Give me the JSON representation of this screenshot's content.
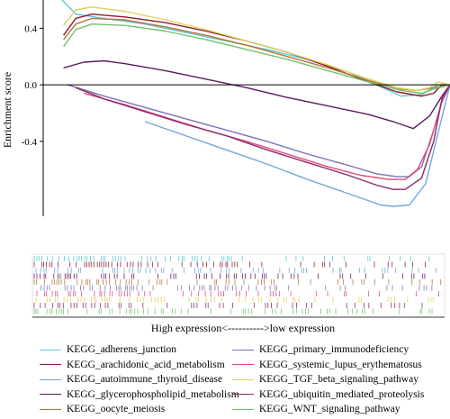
{
  "chart_data": {
    "type": "line",
    "title": "",
    "ylabel": "Enrichment score",
    "xlabel": "High expression<---------->low expression",
    "xlim": [
      0,
      100
    ],
    "ylim": [
      -0.93,
      0.6
    ],
    "yticks": [
      {
        "value": 0.4,
        "label": "0.4"
      },
      {
        "value": 0.0,
        "label": "0.0"
      },
      {
        "value": -0.4,
        "label": "-0.4"
      }
    ],
    "series": [
      {
        "name": "KEGG_adherens_junction",
        "color": "#5bc8d8",
        "points": [
          [
            4,
            0.62
          ],
          [
            8,
            0.5
          ],
          [
            15,
            0.47
          ],
          [
            25,
            0.43
          ],
          [
            35,
            0.37
          ],
          [
            45,
            0.31
          ],
          [
            55,
            0.25
          ],
          [
            65,
            0.18
          ],
          [
            75,
            0.09
          ],
          [
            82,
            0.0
          ],
          [
            88,
            -0.08
          ],
          [
            93,
            -0.07
          ],
          [
            97,
            0.0
          ],
          [
            100,
            0.0
          ]
        ]
      },
      {
        "name": "KEGG_arachidonic_acid_metabolism",
        "color": "#8b1a2e",
        "points": [
          [
            5,
            0.35
          ],
          [
            8,
            0.47
          ],
          [
            12,
            0.5
          ],
          [
            20,
            0.48
          ],
          [
            30,
            0.44
          ],
          [
            40,
            0.38
          ],
          [
            50,
            0.31
          ],
          [
            60,
            0.23
          ],
          [
            70,
            0.13
          ],
          [
            80,
            0.02
          ],
          [
            87,
            -0.05
          ],
          [
            93,
            -0.08
          ],
          [
            96,
            -0.06
          ],
          [
            98,
            0.0
          ],
          [
            100,
            0.0
          ]
        ]
      },
      {
        "name": "KEGG_autoimmune_thyroid_disease",
        "color": "#6fa8dc",
        "points": [
          [
            25,
            -0.26
          ],
          [
            35,
            -0.36
          ],
          [
            45,
            -0.46
          ],
          [
            55,
            -0.56
          ],
          [
            65,
            -0.67
          ],
          [
            75,
            -0.77
          ],
          [
            83,
            -0.85
          ],
          [
            86,
            -0.86
          ],
          [
            90,
            -0.85
          ],
          [
            94,
            -0.7
          ],
          [
            97,
            -0.35
          ],
          [
            100,
            0.0
          ]
        ]
      },
      {
        "name": "KEGG_glycerophospholipid_metabolism",
        "color": "#5a1a5e",
        "points": [
          [
            5,
            0.12
          ],
          [
            10,
            0.16
          ],
          [
            15,
            0.17
          ],
          [
            20,
            0.15
          ],
          [
            30,
            0.1
          ],
          [
            40,
            0.04
          ],
          [
            50,
            -0.02
          ],
          [
            60,
            -0.09
          ],
          [
            70,
            -0.15
          ],
          [
            80,
            -0.21
          ],
          [
            86,
            -0.26
          ],
          [
            89,
            -0.29
          ],
          [
            91,
            -0.31
          ],
          [
            95,
            -0.22
          ],
          [
            98,
            -0.08
          ],
          [
            100,
            0.0
          ]
        ]
      },
      {
        "name": "KEGG_oocyte_meiosis",
        "color": "#b5733a",
        "points": [
          [
            5,
            0.32
          ],
          [
            8,
            0.43
          ],
          [
            12,
            0.47
          ],
          [
            20,
            0.46
          ],
          [
            30,
            0.41
          ],
          [
            40,
            0.35
          ],
          [
            50,
            0.28
          ],
          [
            60,
            0.2
          ],
          [
            70,
            0.12
          ],
          [
            80,
            0.03
          ],
          [
            88,
            -0.03
          ],
          [
            92,
            -0.04
          ],
          [
            96,
            -0.02
          ],
          [
            100,
            0.0
          ]
        ]
      },
      {
        "name": "KEGG_primary_immunodeficiency",
        "color": "#7a72b8",
        "points": [
          [
            6,
            0.0
          ],
          [
            15,
            -0.08
          ],
          [
            25,
            -0.16
          ],
          [
            35,
            -0.24
          ],
          [
            45,
            -0.32
          ],
          [
            55,
            -0.4
          ],
          [
            65,
            -0.49
          ],
          [
            75,
            -0.57
          ],
          [
            82,
            -0.63
          ],
          [
            87,
            -0.65
          ],
          [
            90,
            -0.65
          ],
          [
            93,
            -0.58
          ],
          [
            96,
            -0.32
          ],
          [
            98,
            -0.12
          ],
          [
            100,
            0.0
          ]
        ]
      },
      {
        "name": "KEGG_systemic_lupus_erythematosus",
        "color": "#e8467c",
        "points": [
          [
            10,
            -0.06
          ],
          [
            20,
            -0.14
          ],
          [
            30,
            -0.23
          ],
          [
            40,
            -0.32
          ],
          [
            50,
            -0.4
          ],
          [
            60,
            -0.49
          ],
          [
            70,
            -0.58
          ],
          [
            78,
            -0.64
          ],
          [
            85,
            -0.67
          ],
          [
            89,
            -0.67
          ],
          [
            92,
            -0.6
          ],
          [
            95,
            -0.42
          ],
          [
            98,
            -0.12
          ],
          [
            100,
            0.0
          ]
        ]
      },
      {
        "name": "KEGG_TGF_beta_signaling_pathway",
        "color": "#e0cf5a",
        "points": [
          [
            5,
            0.42
          ],
          [
            8,
            0.53
          ],
          [
            12,
            0.55
          ],
          [
            20,
            0.52
          ],
          [
            30,
            0.46
          ],
          [
            40,
            0.39
          ],
          [
            50,
            0.31
          ],
          [
            60,
            0.23
          ],
          [
            70,
            0.14
          ],
          [
            80,
            0.04
          ],
          [
            87,
            -0.02
          ],
          [
            92,
            -0.04
          ],
          [
            95,
            -0.02
          ],
          [
            97,
            0.02
          ],
          [
            100,
            0.0
          ]
        ]
      },
      {
        "name": "KEGG_ubiquitin_mediated_proteolysis",
        "color": "#8a2a6e",
        "points": [
          [
            8,
            -0.02
          ],
          [
            15,
            -0.1
          ],
          [
            25,
            -0.19
          ],
          [
            35,
            -0.28
          ],
          [
            45,
            -0.36
          ],
          [
            55,
            -0.46
          ],
          [
            65,
            -0.55
          ],
          [
            75,
            -0.64
          ],
          [
            82,
            -0.71
          ],
          [
            86,
            -0.74
          ],
          [
            89,
            -0.74
          ],
          [
            93,
            -0.66
          ],
          [
            96,
            -0.4
          ],
          [
            98,
            -0.1
          ],
          [
            100,
            0.0
          ]
        ]
      },
      {
        "name": "KEGG_WNT_signaling_pathway",
        "color": "#6fc36a",
        "points": [
          [
            5,
            0.27
          ],
          [
            8,
            0.39
          ],
          [
            12,
            0.43
          ],
          [
            20,
            0.42
          ],
          [
            30,
            0.38
          ],
          [
            40,
            0.32
          ],
          [
            50,
            0.25
          ],
          [
            60,
            0.18
          ],
          [
            70,
            0.1
          ],
          [
            80,
            0.02
          ],
          [
            88,
            -0.04
          ],
          [
            93,
            -0.06
          ],
          [
            96,
            -0.03
          ],
          [
            100,
            0.0
          ]
        ]
      }
    ]
  }
}
